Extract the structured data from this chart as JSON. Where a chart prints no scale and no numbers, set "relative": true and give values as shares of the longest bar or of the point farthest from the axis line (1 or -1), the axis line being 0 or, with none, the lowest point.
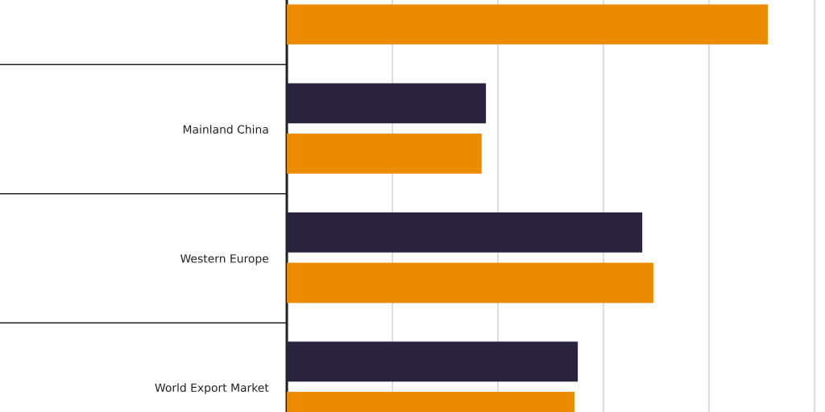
{
  "chart_data": {
    "type": "bar",
    "orientation": "horizontal",
    "relative": true,
    "categories": [
      null,
      "Mainland China",
      "Western Europe",
      "World Export Market"
    ],
    "series": [
      {
        "color": "#29233d",
        "values": [
          null,
          0.414,
          0.739,
          0.605
        ]
      },
      {
        "color": "#ec8b00",
        "values": [
          1,
          0.405,
          0.762,
          0.598
        ]
      }
    ],
    "grid": "x",
    "legend": false
  }
}
